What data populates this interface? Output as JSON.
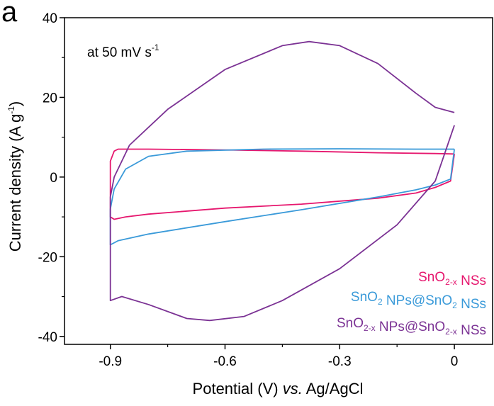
{
  "chart_data": {
    "type": "line",
    "panel_label": "a",
    "annotation": {
      "text": "at 50 mV s",
      "sup": "-1"
    },
    "xlabel": {
      "main": "Potential (V) ",
      "italic": "vs.",
      "rest": " Ag/AgCl"
    },
    "ylabel": {
      "main": "Current density (A g",
      "sup": "-1",
      "end": ")"
    },
    "xlim": [
      -1.02,
      0.1
    ],
    "ylim": [
      -42,
      40
    ],
    "xticks": [
      -0.9,
      -0.6,
      -0.3,
      0
    ],
    "xtick_labels": [
      "-0.9",
      "-0.6",
      "-0.3",
      "0"
    ],
    "yticks": [
      -40,
      -20,
      0,
      20,
      40
    ],
    "ytick_labels": [
      "-40",
      "-20",
      "0",
      "20",
      "40"
    ],
    "grid": false,
    "legend_position": "bottom-right",
    "series": [
      {
        "name": "SnO2-x NSs",
        "legend_parts": [
          [
            "SnO",
            ""
          ],
          [
            "2-x",
            "sub"
          ],
          [
            " NSs",
            ""
          ]
        ],
        "color": "#e6176e",
        "x": [
          0.0,
          -0.05,
          -0.2,
          -0.4,
          -0.6,
          -0.8,
          -0.88,
          -0.89,
          -0.9,
          -0.9,
          -0.89,
          -0.86,
          -0.8,
          -0.6,
          -0.4,
          -0.2,
          -0.1,
          -0.05,
          -0.01,
          0.0
        ],
        "y": [
          5.8,
          5.9,
          6.1,
          6.5,
          6.8,
          7.0,
          7.0,
          6.5,
          4.0,
          -10.0,
          -10.6,
          -10.0,
          -9.3,
          -7.8,
          -6.8,
          -5.3,
          -4.0,
          -2.6,
          -1.0,
          5.8
        ]
      },
      {
        "name": "SnO2 NPs@SnO2 NSs",
        "legend_parts": [
          [
            "SnO",
            ""
          ],
          [
            "2",
            "sub"
          ],
          [
            " NPs@SnO",
            ""
          ],
          [
            "2",
            "sub"
          ],
          [
            " NSs",
            ""
          ]
        ],
        "color": "#3a9ad9",
        "x": [
          0.0,
          -0.1,
          -0.3,
          -0.5,
          -0.7,
          -0.8,
          -0.86,
          -0.89,
          -0.9,
          -0.9,
          -0.88,
          -0.8,
          -0.6,
          -0.4,
          -0.2,
          -0.1,
          -0.05,
          -0.01,
          0.0
        ],
        "y": [
          7.0,
          7.0,
          7.1,
          7.0,
          6.5,
          5.2,
          2.0,
          -3.0,
          -8.0,
          -17.0,
          -16.0,
          -14.3,
          -11.2,
          -8.2,
          -5.0,
          -3.2,
          -2.0,
          -0.5,
          7.0
        ]
      },
      {
        "name": "SnO2-x NPs@SnO2-x NSs",
        "legend_parts": [
          [
            "SnO",
            ""
          ],
          [
            "2-x",
            "sub"
          ],
          [
            " NPs@SnO",
            ""
          ],
          [
            "2-x",
            "sub"
          ],
          [
            " NSs",
            ""
          ]
        ],
        "color": "#7b3294",
        "x": [
          0.0,
          -0.05,
          -0.1,
          -0.2,
          -0.3,
          -0.38,
          -0.45,
          -0.6,
          -0.75,
          -0.85,
          -0.89,
          -0.9,
          -0.9,
          -0.87,
          -0.8,
          -0.7,
          -0.64,
          -0.55,
          -0.45,
          -0.3,
          -0.15,
          -0.05,
          0.0
        ],
        "y": [
          16.2,
          17.5,
          21.0,
          28.5,
          33.0,
          34.0,
          33.0,
          27.0,
          17.0,
          8.0,
          0.0,
          -5.0,
          -31.0,
          -30.0,
          -32.0,
          -35.5,
          -36.0,
          -35.0,
          -31.0,
          -23.0,
          -12.0,
          -1.0,
          13.0
        ]
      }
    ]
  }
}
